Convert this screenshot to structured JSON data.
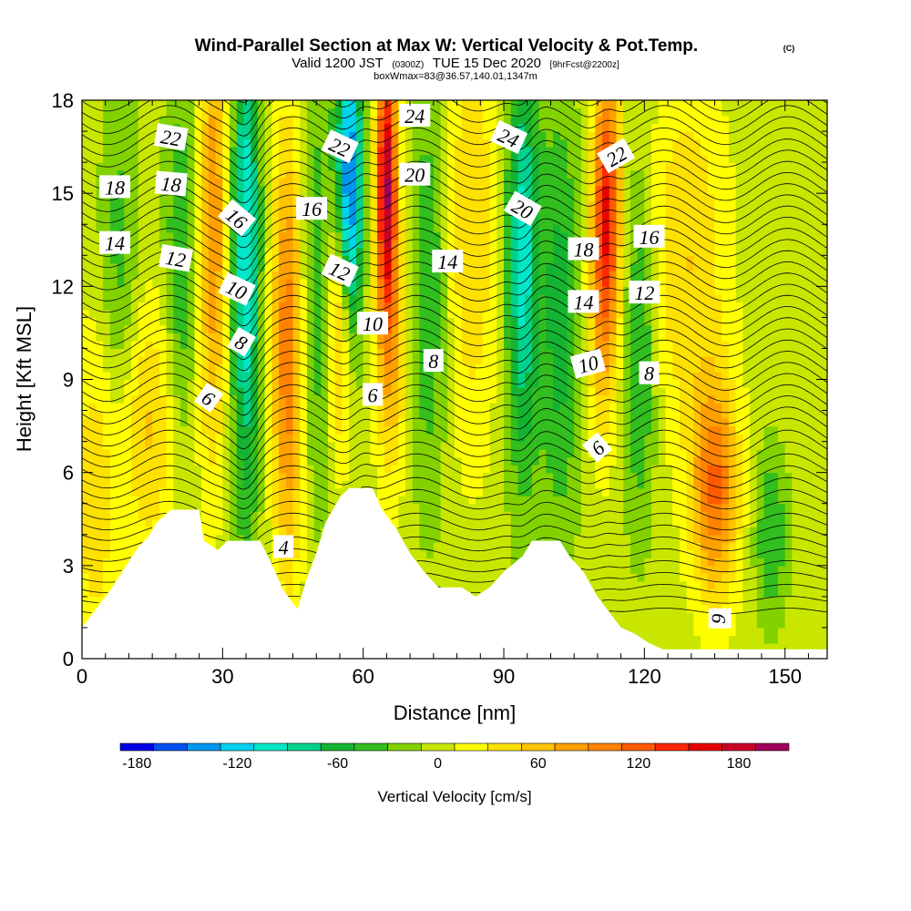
{
  "title": {
    "main": "Wind-Parallel Section at Max W: Vertical Velocity & Pot.Temp.",
    "copyright": "(C)",
    "valid_prefix": "Valid 1200 JST",
    "valid_utc": "(0300Z)",
    "valid_date": "TUE 15 Dec 2020",
    "forecast": "[9hrFcst@2200z]",
    "box_info": "boxWmax=83@36.57,140.01,1347m"
  },
  "colors": {
    "terrain": "#ffffff",
    "contour_line": "#000000",
    "frame": "#000000"
  },
  "chart_data": {
    "type": "heatmap",
    "xlabel": "Distance [nm]",
    "ylabel": "Height [Kft MSL]",
    "xlim": [
      0,
      159
    ],
    "ylim": [
      0,
      18
    ],
    "x_ticks": [
      0,
      30,
      60,
      90,
      120,
      150
    ],
    "y_ticks": [
      0,
      3,
      6,
      9,
      12,
      15,
      18
    ],
    "colorbar": {
      "title": "Vertical Velocity [cm/s]",
      "ticks": [
        -180,
        -120,
        -60,
        0,
        60,
        120,
        180
      ],
      "levels": [
        -190,
        -170,
        -150,
        -130,
        -110,
        -90,
        -70,
        -50,
        -30,
        -10,
        10,
        30,
        50,
        70,
        90,
        110,
        130,
        150,
        170,
        190,
        210
      ],
      "colors": [
        "#0000e6",
        "#0050f0",
        "#0096f0",
        "#00d2f0",
        "#00e6c8",
        "#00d28c",
        "#14b432",
        "#32be1e",
        "#82d200",
        "#c8e600",
        "#ffff00",
        "#ffe100",
        "#ffc300",
        "#ffa000",
        "#ff8200",
        "#ff5a00",
        "#ff2800",
        "#e60000",
        "#c80028",
        "#a0005a",
        "#780096"
      ]
    },
    "velocity_features": [
      {
        "x": 8,
        "z": 11.5,
        "w": -45,
        "sx": 3,
        "sz": 5
      },
      {
        "x": 14,
        "z": 7.5,
        "w": 55,
        "sx": 6,
        "sz": 3
      },
      {
        "x": 21,
        "z": 12,
        "w": -55,
        "sx": 2.5,
        "sz": 5
      },
      {
        "x": 28,
        "z": 14,
        "w": 90,
        "sx": 2.2,
        "sz": 5
      },
      {
        "x": 35,
        "z": 13,
        "w": -110,
        "sx": 2.2,
        "sz": 6
      },
      {
        "x": 44,
        "z": 10,
        "w": 110,
        "sx": 2.5,
        "sz": 5
      },
      {
        "x": 50,
        "z": 12,
        "w": -50,
        "sx": 3,
        "sz": 5
      },
      {
        "x": 57,
        "z": 15,
        "w": -170,
        "sx": 2,
        "sz": 3.5
      },
      {
        "x": 55,
        "z": 11,
        "w": 100,
        "sx": 2,
        "sz": 3
      },
      {
        "x": 65,
        "z": 15.5,
        "w": 180,
        "sx": 1.6,
        "sz": 3
      },
      {
        "x": 66,
        "z": 10,
        "w": 70,
        "sx": 2.5,
        "sz": 3
      },
      {
        "x": 74,
        "z": 12,
        "w": -50,
        "sx": 3,
        "sz": 5
      },
      {
        "x": 83,
        "z": 14,
        "w": 50,
        "sx": 4,
        "sz": 5
      },
      {
        "x": 94,
        "z": 13,
        "w": -100,
        "sx": 2.5,
        "sz": 5
      },
      {
        "x": 102,
        "z": 11,
        "w": -60,
        "sx": 3,
        "sz": 5
      },
      {
        "x": 112,
        "z": 15,
        "w": 130,
        "sx": 2,
        "sz": 3
      },
      {
        "x": 111,
        "z": 11,
        "w": 60,
        "sx": 2.5,
        "sz": 3
      },
      {
        "x": 119,
        "z": 10,
        "w": -60,
        "sx": 2.5,
        "sz": 4
      },
      {
        "x": 129,
        "z": 13,
        "w": 50,
        "sx": 6,
        "sz": 4
      },
      {
        "x": 135,
        "z": 5.5,
        "w": 110,
        "sx": 3.5,
        "sz": 2.5
      },
      {
        "x": 147,
        "z": 4,
        "w": -50,
        "sx": 2.5,
        "sz": 2
      },
      {
        "x": 3,
        "z": 5,
        "w": 40,
        "sx": 4,
        "sz": 4
      }
    ],
    "terrain_kft": [
      [
        0,
        1.0
      ],
      [
        3,
        1.6
      ],
      [
        6,
        2.2
      ],
      [
        9,
        2.9
      ],
      [
        12,
        3.6
      ],
      [
        14,
        3.9
      ],
      [
        16,
        4.4
      ],
      [
        19,
        4.8
      ],
      [
        25,
        4.8
      ],
      [
        26,
        3.8
      ],
      [
        29,
        3.5
      ],
      [
        31,
        3.8
      ],
      [
        38,
        3.8
      ],
      [
        40,
        3.2
      ],
      [
        43,
        2.2
      ],
      [
        46,
        1.6
      ],
      [
        48,
        2.6
      ],
      [
        50,
        3.4
      ],
      [
        52,
        4.4
      ],
      [
        55,
        5.2
      ],
      [
        57,
        5.5
      ],
      [
        62,
        5.5
      ],
      [
        64,
        4.8
      ],
      [
        67,
        4.2
      ],
      [
        70,
        3.4
      ],
      [
        73,
        2.8
      ],
      [
        76,
        2.3
      ],
      [
        81,
        2.3
      ],
      [
        84,
        2.0
      ],
      [
        87,
        2.3
      ],
      [
        90,
        2.8
      ],
      [
        94,
        3.3
      ],
      [
        96,
        3.8
      ],
      [
        102,
        3.8
      ],
      [
        104,
        3.3
      ],
      [
        107,
        2.8
      ],
      [
        110,
        2.0
      ],
      [
        113,
        1.4
      ],
      [
        115,
        1.0
      ],
      [
        118,
        0.8
      ],
      [
        121,
        0.5
      ],
      [
        124,
        0.3
      ],
      [
        159,
        0.3
      ]
    ],
    "theta_contour_levels": [
      4,
      6,
      8,
      10,
      12,
      14,
      16,
      18,
      20,
      22,
      24
    ],
    "theta_labels": [
      {
        "text": "22",
        "x": 19,
        "z": 16.8,
        "rot": 10
      },
      {
        "text": "18",
        "x": 7,
        "z": 15.2,
        "rot": 0
      },
      {
        "text": "18",
        "x": 19,
        "z": 15.3,
        "rot": 5
      },
      {
        "text": "14",
        "x": 7,
        "z": 13.4,
        "rot": 0
      },
      {
        "text": "12",
        "x": 20,
        "z": 12.9,
        "rot": 10
      },
      {
        "text": "16",
        "x": 33,
        "z": 14.2,
        "rot": 40
      },
      {
        "text": "10",
        "x": 33,
        "z": 11.9,
        "rot": 25
      },
      {
        "text": "8",
        "x": 34,
        "z": 10.2,
        "rot": 30
      },
      {
        "text": "6",
        "x": 27,
        "z": 8.4,
        "rot": 35
      },
      {
        "text": "16",
        "x": 49,
        "z": 14.5,
        "rot": 0
      },
      {
        "text": "22",
        "x": 55,
        "z": 16.5,
        "rot": 25
      },
      {
        "text": "12",
        "x": 55,
        "z": 12.5,
        "rot": 25
      },
      {
        "text": "10",
        "x": 62,
        "z": 10.8,
        "rot": 0
      },
      {
        "text": "6",
        "x": 62,
        "z": 8.5,
        "rot": 0
      },
      {
        "text": "4",
        "x": 43,
        "z": 3.6,
        "rot": 0
      },
      {
        "text": "24",
        "x": 71,
        "z": 17.5,
        "rot": 0
      },
      {
        "text": "20",
        "x": 71,
        "z": 15.6,
        "rot": 0
      },
      {
        "text": "14",
        "x": 78,
        "z": 12.8,
        "rot": 0
      },
      {
        "text": "8",
        "x": 75,
        "z": 9.6,
        "rot": 0
      },
      {
        "text": "24",
        "x": 91,
        "z": 16.8,
        "rot": 25
      },
      {
        "text": "20",
        "x": 94,
        "z": 14.5,
        "rot": 30
      },
      {
        "text": "22",
        "x": 114,
        "z": 16.2,
        "rot": -30
      },
      {
        "text": "18",
        "x": 107,
        "z": 13.2,
        "rot": 0
      },
      {
        "text": "16",
        "x": 121,
        "z": 13.6,
        "rot": 0
      },
      {
        "text": "14",
        "x": 107,
        "z": 11.5,
        "rot": 0
      },
      {
        "text": "12",
        "x": 120,
        "z": 11.8,
        "rot": 0
      },
      {
        "text": "10",
        "x": 108,
        "z": 9.5,
        "rot": -15
      },
      {
        "text": "8",
        "x": 121,
        "z": 9.2,
        "rot": 0
      },
      {
        "text": "6",
        "x": 110,
        "z": 6.8,
        "rot": -40
      },
      {
        "text": "6",
        "x": 136,
        "z": 1.3,
        "rot": 90
      }
    ]
  }
}
